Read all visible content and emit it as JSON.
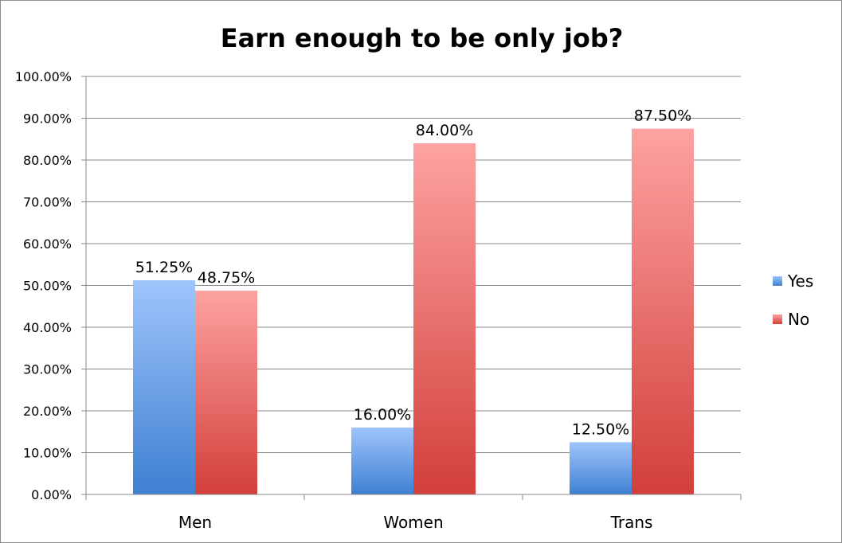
{
  "chart_data": {
    "type": "bar",
    "title": "Earn enough to be only job?",
    "categories": [
      "Men",
      "Women",
      "Trans"
    ],
    "series": [
      {
        "name": "Yes",
        "values": [
          51.25,
          16.0,
          12.5
        ],
        "color_top": "#9ec4fb",
        "color_bottom": "#3f80d2"
      },
      {
        "name": "No",
        "values": [
          48.75,
          84.0,
          87.5
        ],
        "color_top": "#fda2a2",
        "color_bottom": "#d23f3a"
      }
    ],
    "data_labels": [
      [
        "51.25%",
        "16.00%",
        "12.50%"
      ],
      [
        "48.75%",
        "84.00%",
        "87.50%"
      ]
    ],
    "y_ticks": [
      "0.00%",
      "10.00%",
      "20.00%",
      "30.00%",
      "40.00%",
      "50.00%",
      "60.00%",
      "70.00%",
      "80.00%",
      "90.00%",
      "100.00%"
    ],
    "ylim": [
      0,
      100
    ],
    "grid": true,
    "legend_position": "right"
  }
}
